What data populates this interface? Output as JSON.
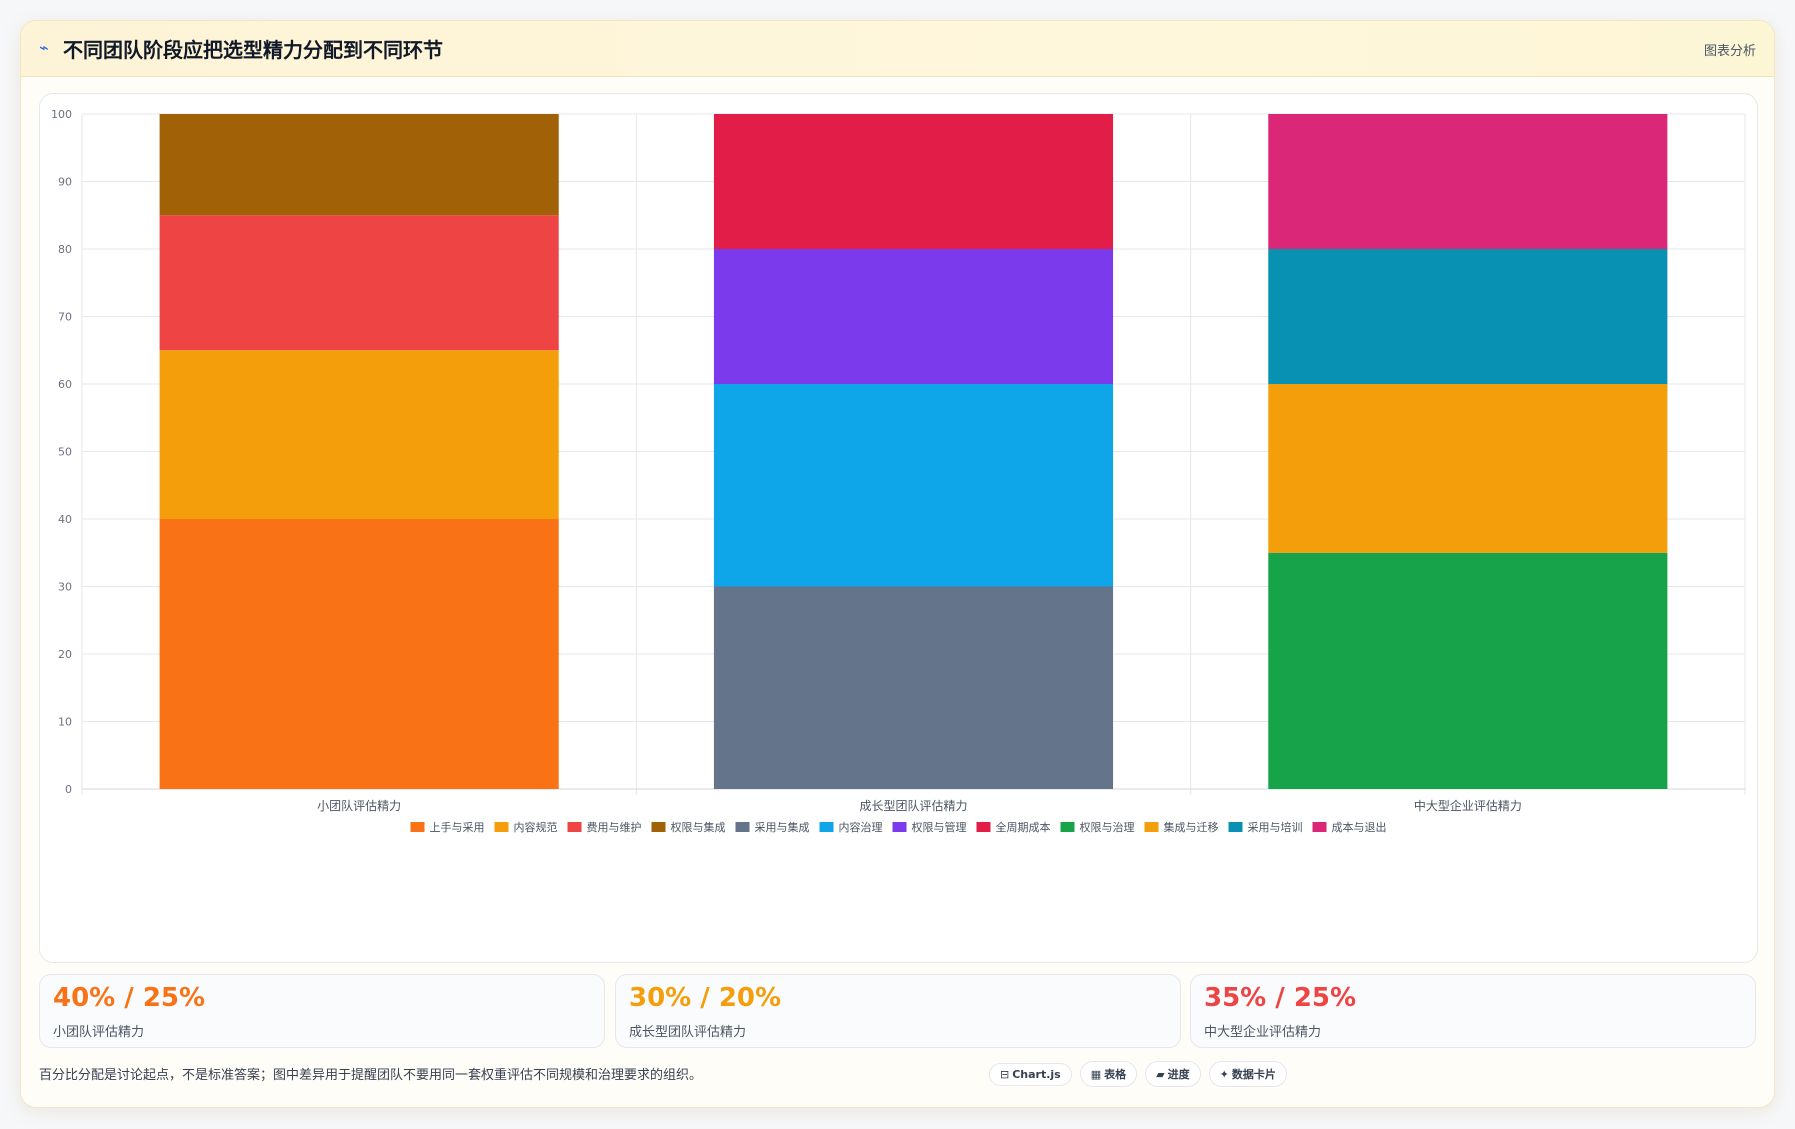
{
  "header": {
    "title": "不同团队阶段应把选型精力分配到不同环节",
    "tag": "图表分析"
  },
  "chart_data": {
    "type": "bar",
    "stacked": true,
    "categories": [
      "小团队评估精力",
      "成长型团队评估精力",
      "中大型企业评估精力"
    ],
    "ylim": [
      0,
      100
    ],
    "yticks": [
      0,
      10,
      20,
      30,
      40,
      50,
      60,
      70,
      80,
      90,
      100
    ],
    "grid": true,
    "legend_position": "bottom",
    "series": [
      {
        "name": "上手与采用",
        "color": "#f97316",
        "values": [
          40,
          0,
          0
        ]
      },
      {
        "name": "内容规范",
        "color": "#f59e0b",
        "values": [
          25,
          0,
          0
        ]
      },
      {
        "name": "费用与维护",
        "color": "#ef4444",
        "values": [
          20,
          0,
          0
        ]
      },
      {
        "name": "权限与集成",
        "color": "#a16207",
        "values": [
          15,
          0,
          0
        ]
      },
      {
        "name": "采用与集成",
        "color": "#64748b",
        "values": [
          0,
          30,
          0
        ]
      },
      {
        "name": "内容治理",
        "color": "#0ea5e9",
        "values": [
          0,
          30,
          0
        ]
      },
      {
        "name": "权限与管理",
        "color": "#7c3aed",
        "values": [
          0,
          20,
          0
        ]
      },
      {
        "name": "全周期成本",
        "color": "#e11d48",
        "values": [
          0,
          20,
          0
        ]
      },
      {
        "name": "权限与治理",
        "color": "#16a34a",
        "values": [
          0,
          0,
          35
        ]
      },
      {
        "name": "集成与迁移",
        "color": "#f59e0b",
        "values": [
          0,
          0,
          25
        ]
      },
      {
        "name": "采用与培训",
        "color": "#0891b2",
        "values": [
          0,
          0,
          20
        ]
      },
      {
        "name": "成本与退出",
        "color": "#db2777",
        "values": [
          0,
          0,
          20
        ]
      }
    ]
  },
  "stats": [
    {
      "value": "40% / 25%",
      "label": "小团队评估精力",
      "color": "#f97316"
    },
    {
      "value": "30% / 20%",
      "label": "成长型团队评估精力",
      "color": "#f59e0b"
    },
    {
      "value": "35% / 25%",
      "label": "中大型企业评估精力",
      "color": "#ef4444"
    }
  ],
  "footer": {
    "note": "百分比分配是讨论起点，不是标准答案；图中差异用于提醒团队不要用同一套权重评估不同规模和治理要求的组织。",
    "chips": [
      {
        "icon": "⊟",
        "label": "Chart.js"
      },
      {
        "icon": "▦",
        "label": "表格"
      },
      {
        "icon": "▰",
        "label": "进度"
      },
      {
        "icon": "✦",
        "label": "数据卡片"
      }
    ]
  }
}
